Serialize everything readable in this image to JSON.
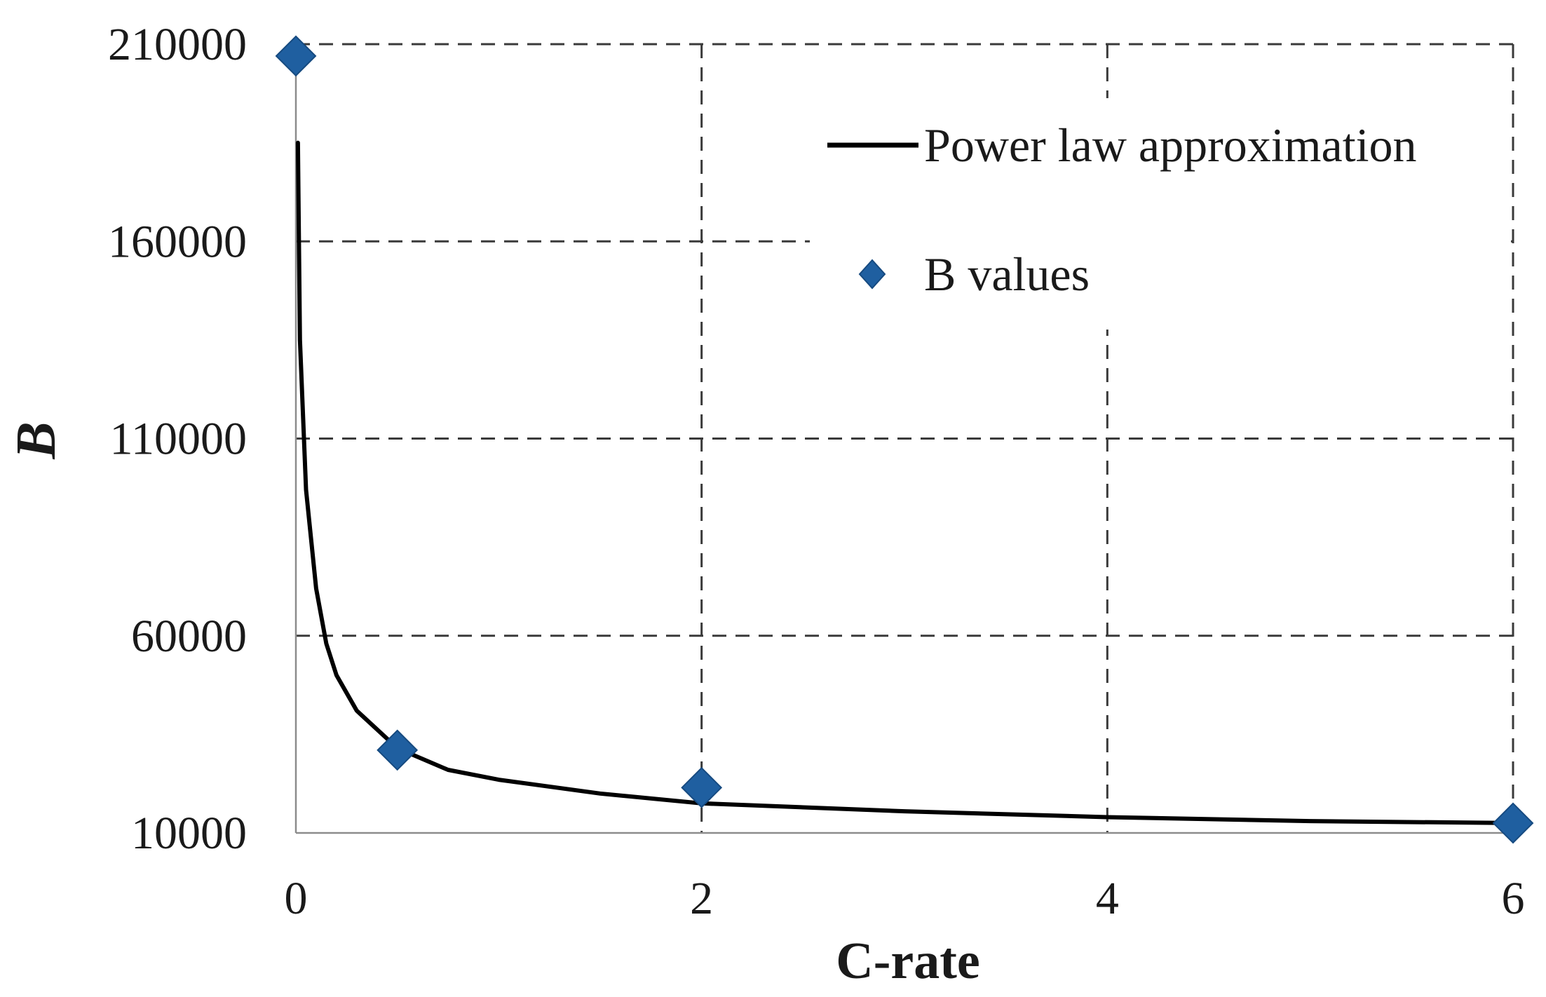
{
  "chart_data": {
    "type": "scatter",
    "xlabel": "C-rate",
    "ylabel": "B",
    "xlim": [
      0,
      6
    ],
    "ylim": [
      10000,
      210000
    ],
    "xticks": [
      0,
      2,
      4,
      6
    ],
    "yticks": [
      10000,
      60000,
      110000,
      160000,
      210000
    ],
    "grid": true,
    "legend_position": "top-right",
    "series": [
      {
        "name": "Power law approximation",
        "kind": "line",
        "color": "#000000",
        "x": [
          0.01,
          0.02,
          0.05,
          0.1,
          0.15,
          0.2,
          0.3,
          0.5,
          0.75,
          1,
          1.5,
          2,
          3,
          4,
          5,
          6
        ],
        "y": [
          185000,
          135000,
          97000,
          72000,
          58000,
          50000,
          41000,
          31500,
          26000,
          23500,
          20000,
          17500,
          15500,
          14000,
          13000,
          12500
        ]
      },
      {
        "name": "B values",
        "kind": "scatter",
        "marker": "diamond",
        "color": "#1f5fa0",
        "x": [
          0,
          0.5,
          2,
          6
        ],
        "y": [
          207000,
          31000,
          21500,
          12500
        ]
      }
    ]
  }
}
